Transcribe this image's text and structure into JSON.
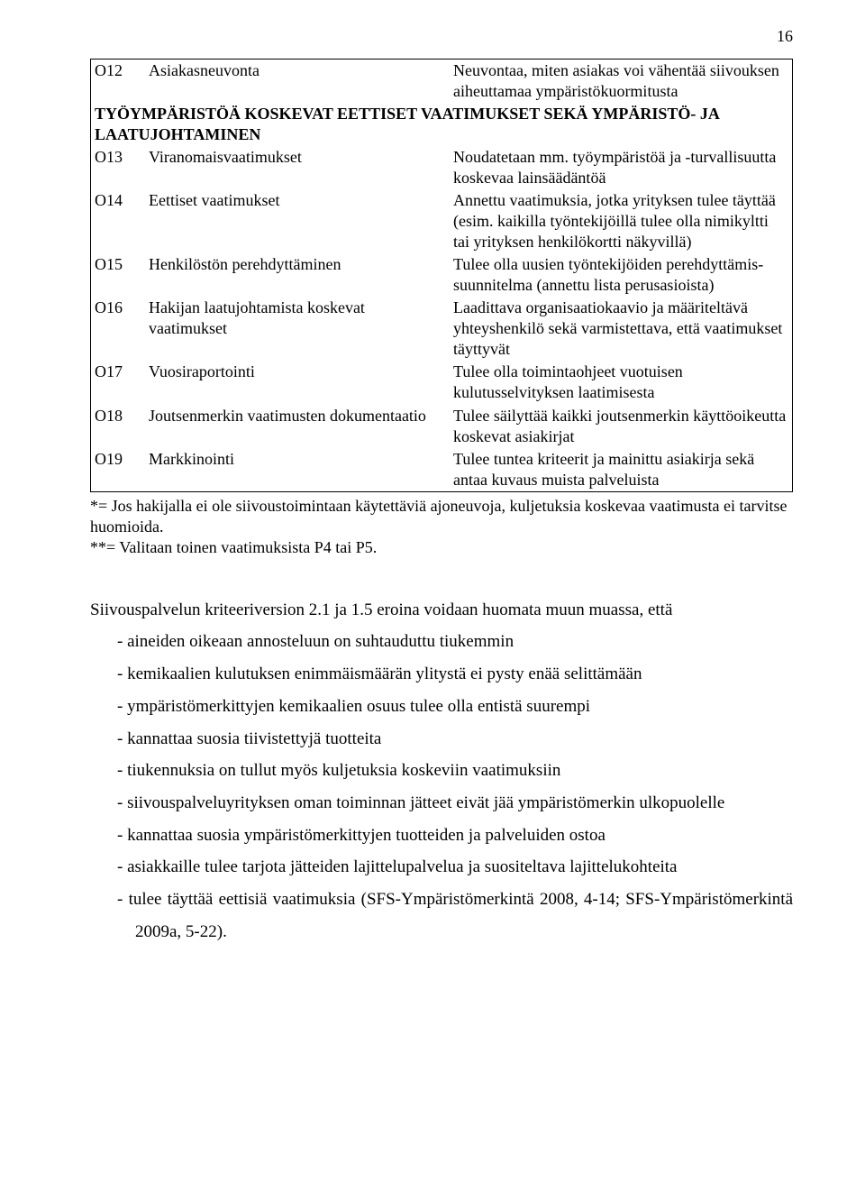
{
  "page_number": "16",
  "table": {
    "rows": [
      {
        "code": "O12",
        "label": "Asiakasneuvonta",
        "desc": "Neuvontaa, miten asiakas voi vähentää siivouksen aiheuttamaa ympäristökuormitusta"
      }
    ],
    "section2_title": "TYÖYMPÄRISTÖÄ KOSKEVAT EETTISET VAATIMUKSET SEKÄ YMPÄRISTÖ- JA LAATUJOHTAMINEN",
    "rows2": [
      {
        "code": "O13",
        "label": "Viranomaisvaatimukset",
        "desc": "Noudatetaan mm. työympäristöä ja -turvallisuutta koskevaa lainsäädäntöä"
      },
      {
        "code": "O14",
        "label": "Eettiset vaatimukset",
        "desc": "Annettu vaatimuksia, jotka yrityksen tulee täyttää (esim. kaikilla työntekijöillä tulee olla nimikyltti tai yrityksen henkilökortti näkyvillä)"
      },
      {
        "code": "O15",
        "label": "Henkilöstön perehdyttäminen",
        "desc": "Tulee olla uusien työntekijöiden perehdyttämis-suunnitelma (annettu lista perusasioista)"
      },
      {
        "code": "O16",
        "label": "Hakijan laatujohtamista koskevat vaatimukset",
        "desc": "Laadittava organisaatiokaavio ja määriteltävä yhteyshenkilö sekä varmistettava, että vaatimukset täyttyvät"
      },
      {
        "code": "O17",
        "label": "Vuosiraportointi",
        "desc": "Tulee olla toimintaohjeet vuotuisen kulutusselvityksen laatimisesta"
      },
      {
        "code": "O18",
        "label": "Joutsenmerkin vaatimusten dokumentaatio",
        "desc": "Tulee säilyttää kaikki joutsenmerkin käyttöoikeutta koskevat asiakirjat"
      },
      {
        "code": "O19",
        "label": "Markkinointi",
        "desc": "Tulee tuntea kriteerit ja mainittu asiakirja sekä antaa kuvaus muista palveluista"
      }
    ]
  },
  "footnote1": "*= Jos hakijalla ei ole siivoustoimintaan käytettäviä ajoneuvoja, kuljetuksia koskevaa vaatimusta ei tarvitse huomioida.",
  "footnote2": "**= Valitaan toinen vaatimuksista P4 tai P5.",
  "para_intro": "Siivouspalvelun kriteeriversion 2.1 ja 1.5 eroina voidaan huomata muun muassa, että",
  "bullets": [
    "aineiden oikeaan annosteluun on suhtauduttu tiukemmin",
    "kemikaalien kulutuksen enimmäismäärän ylitystä ei pysty enää selittämään",
    "ympäristömerkittyjen kemikaalien osuus tulee olla entistä suurempi",
    "kannattaa suosia tiivistettyjä tuotteita",
    "tiukennuksia on tullut myös kuljetuksia koskeviin vaatimuksiin",
    "siivouspalveluyrityksen oman toiminnan jätteet eivät jää ympäristömerkin ulkopuolelle",
    "kannattaa suosia ympäristömerkittyjen tuotteiden ja palveluiden ostoa",
    "asiakkaille tulee tarjota jätteiden lajittelupalvelua ja suositeltava lajittelukohteita",
    "tulee täyttää eettisiä vaatimuksia (SFS-Ympäristömerkintä 2008, 4-14; SFS-Ympäristömerkintä 2009a, 5-22)."
  ]
}
